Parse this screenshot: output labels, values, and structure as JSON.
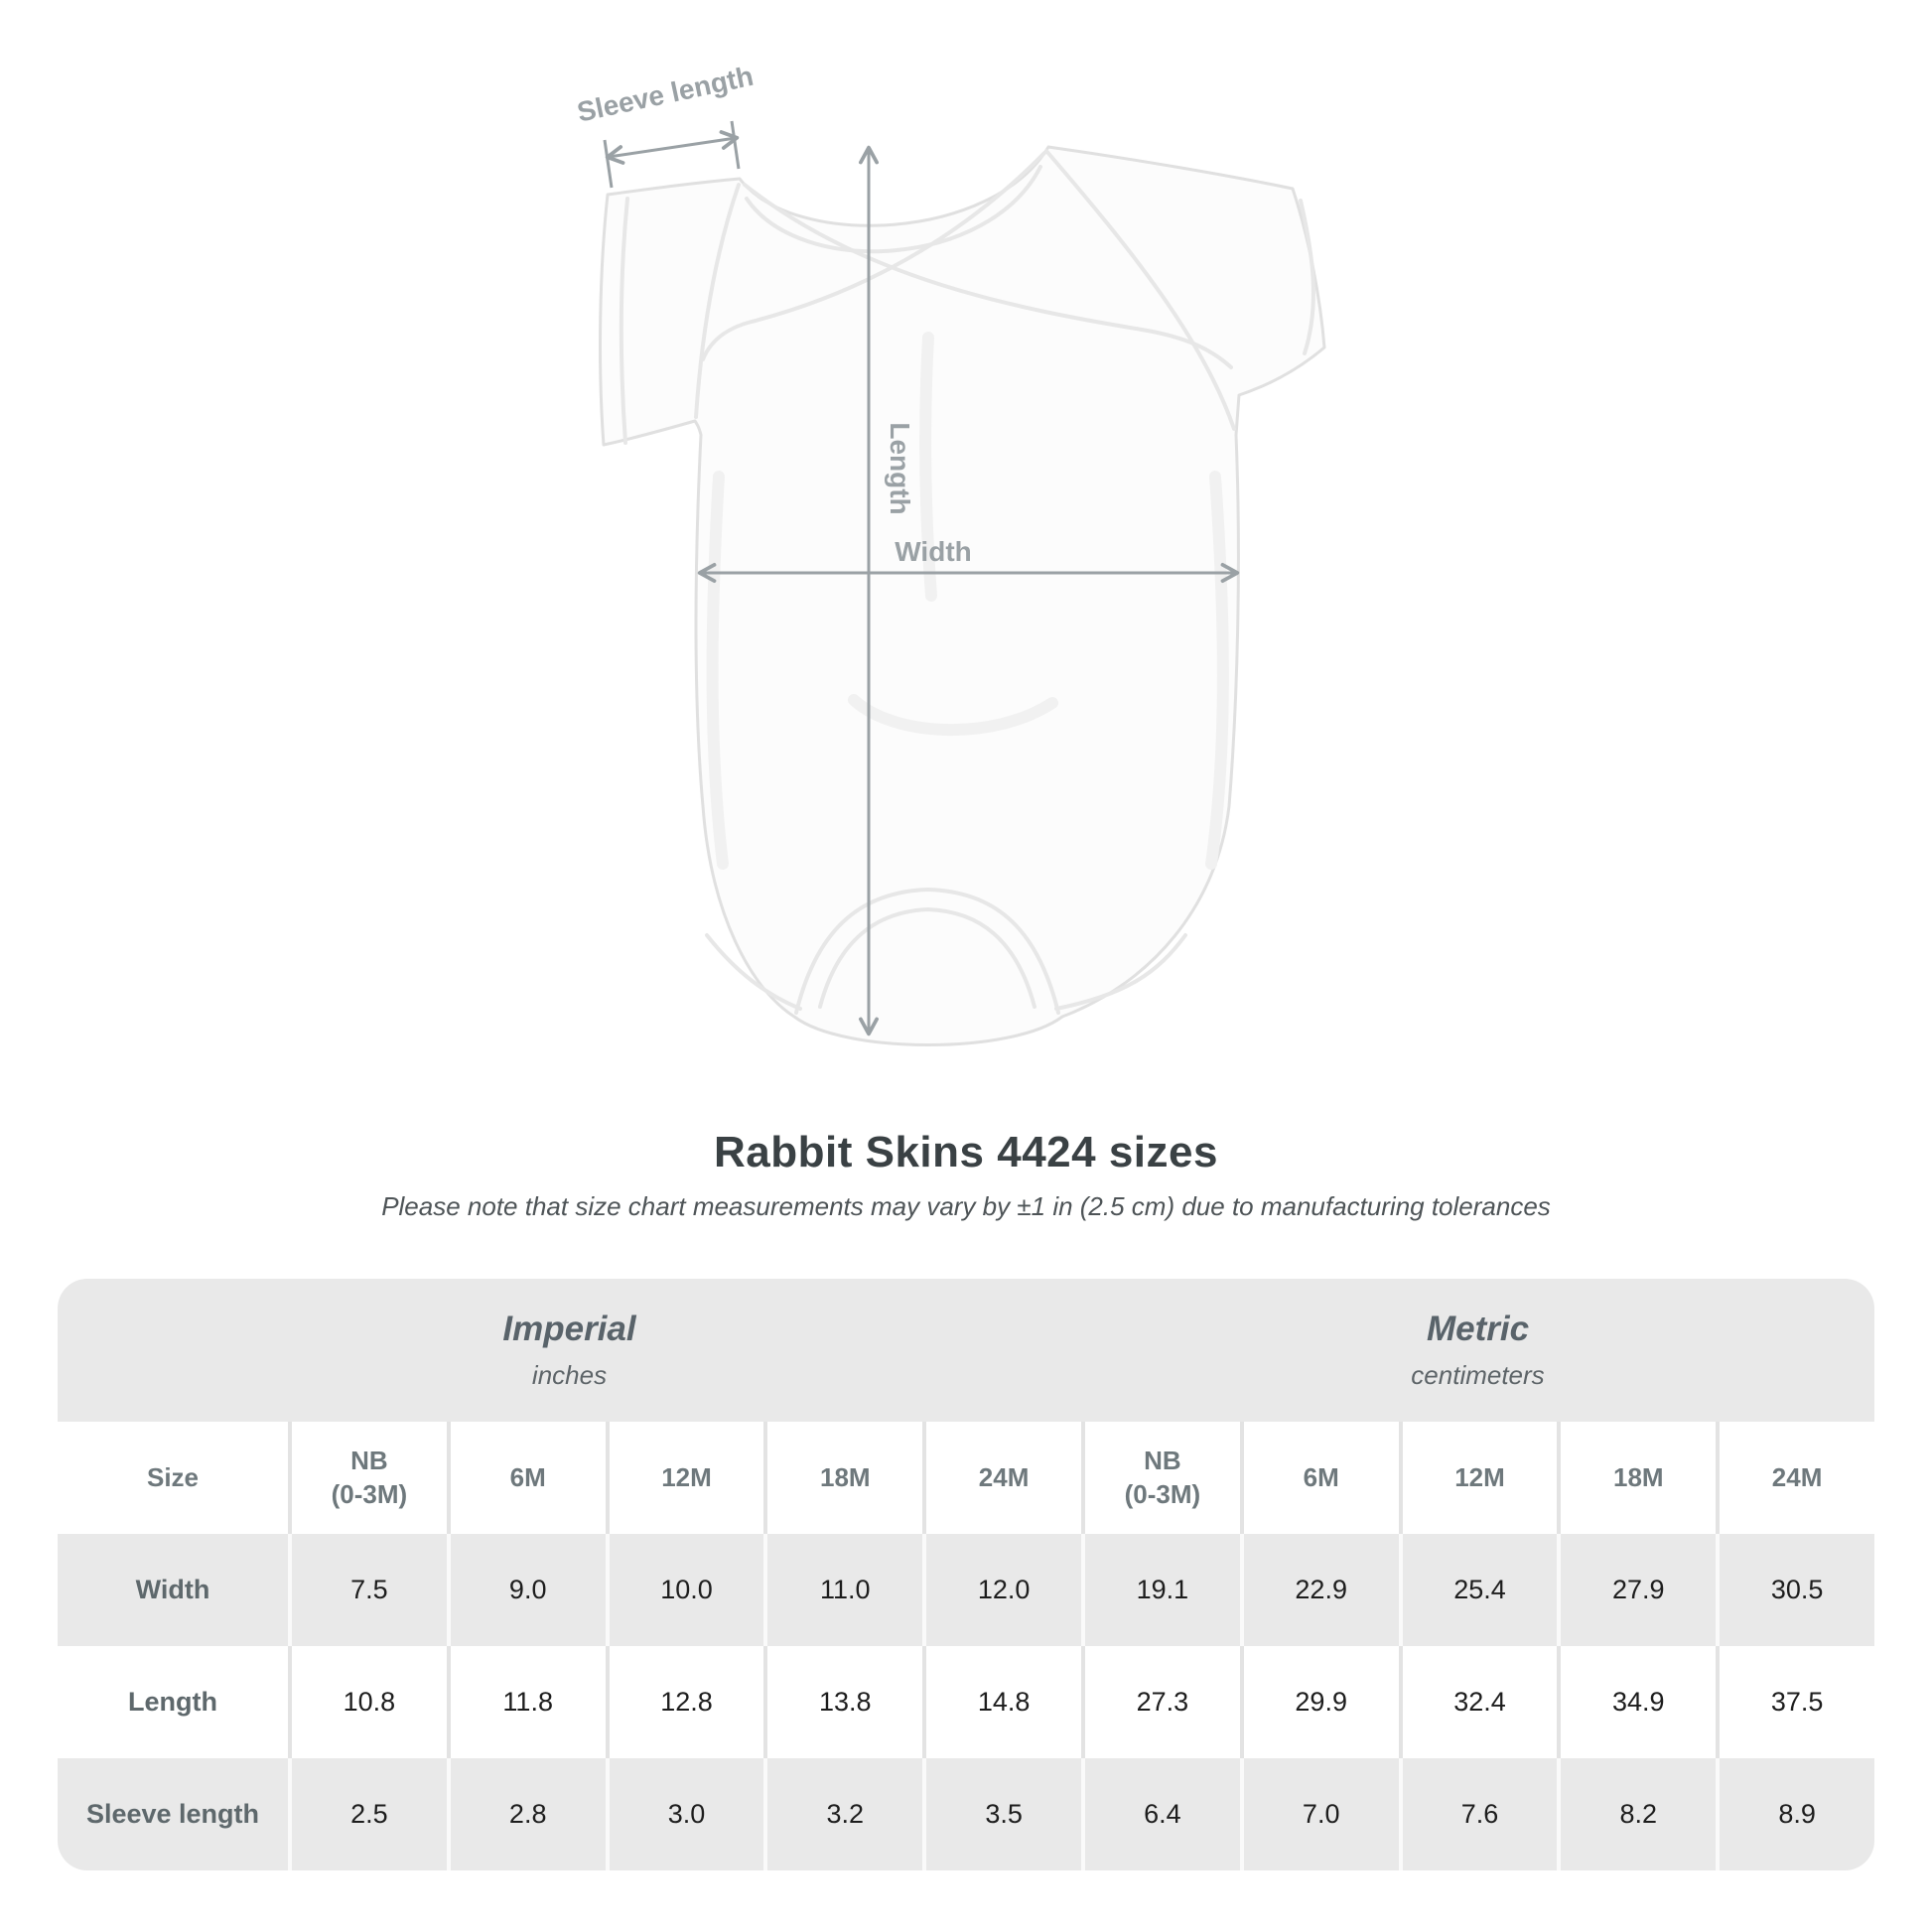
{
  "figure": {
    "sleeve_label": "Sleeve length",
    "length_label": "Length",
    "width_label": "Width"
  },
  "title": "Rabbit Skins 4424 sizes",
  "subtitle": "Please note that size chart measurements may vary by ±1 in (2.5 cm) due to manufacturing tolerances",
  "chart_data": {
    "type": "table",
    "title": "Rabbit Skins 4424 sizes",
    "size_label": "Size",
    "unit_groups": [
      {
        "name": "Imperial",
        "unit": "inches"
      },
      {
        "name": "Metric",
        "unit": "centimeters"
      }
    ],
    "columns": [
      "NB\n(0-3M)",
      "6M",
      "12M",
      "18M",
      "24M"
    ],
    "rows": [
      {
        "label": "Width",
        "imperial": [
          "7.5",
          "9.0",
          "10.0",
          "11.0",
          "12.0"
        ],
        "metric": [
          "19.1",
          "22.9",
          "25.4",
          "27.9",
          "30.5"
        ]
      },
      {
        "label": "Length",
        "imperial": [
          "10.8",
          "11.8",
          "12.8",
          "13.8",
          "14.8"
        ],
        "metric": [
          "27.3",
          "29.9",
          "32.4",
          "34.9",
          "37.5"
        ]
      },
      {
        "label": "Sleeve length",
        "imperial": [
          "2.5",
          "2.8",
          "3.0",
          "3.2",
          "3.5"
        ],
        "metric": [
          "6.4",
          "7.0",
          "7.6",
          "8.2",
          "8.9"
        ]
      }
    ]
  }
}
